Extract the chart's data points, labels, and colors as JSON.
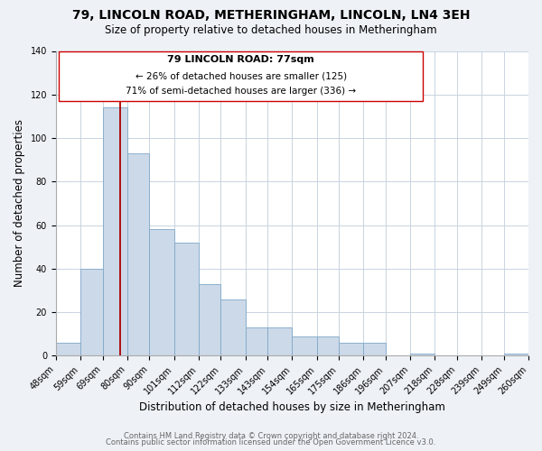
{
  "title": "79, LINCOLN ROAD, METHERINGHAM, LINCOLN, LN4 3EH",
  "subtitle": "Size of property relative to detached houses in Metheringham",
  "xlabel": "Distribution of detached houses by size in Metheringham",
  "ylabel": "Number of detached properties",
  "bar_edges": [
    48,
    59,
    69,
    80,
    90,
    101,
    112,
    122,
    133,
    143,
    154,
    165,
    175,
    186,
    196,
    207,
    218,
    228,
    239,
    249,
    260
  ],
  "bar_heights": [
    6,
    40,
    114,
    93,
    58,
    52,
    33,
    26,
    13,
    13,
    9,
    9,
    6,
    6,
    0,
    1,
    0,
    0,
    0,
    1
  ],
  "bar_color": "#ccd9e8",
  "bar_edge_color": "#7fa8c8",
  "vline_x": 77,
  "vline_color": "#aa0000",
  "ylim": [
    0,
    140
  ],
  "annotation_line1": "79 LINCOLN ROAD: 77sqm",
  "annotation_line2": "← 26% of detached houses are smaller (125)",
  "annotation_line3": "71% of semi-detached houses are larger (336) →",
  "ann_box_color": "#ffffff",
  "ann_border_color": "#cc0000",
  "tick_labels": [
    "48sqm",
    "59sqm",
    "69sqm",
    "80sqm",
    "90sqm",
    "101sqm",
    "112sqm",
    "122sqm",
    "133sqm",
    "143sqm",
    "154sqm",
    "165sqm",
    "175sqm",
    "186sqm",
    "196sqm",
    "207sqm",
    "218sqm",
    "228sqm",
    "239sqm",
    "249sqm",
    "260sqm"
  ],
  "footer_line1": "Contains HM Land Registry data © Crown copyright and database right 2024.",
  "footer_line2": "Contains public sector information licensed under the Open Government Licence v3.0.",
  "background_color": "#eef2f7",
  "plot_bg_color": "#ffffff",
  "grid_color": "#c8d4e0",
  "title_fontsize": 10,
  "subtitle_fontsize": 8.5,
  "axis_label_fontsize": 8.5,
  "tick_fontsize": 7,
  "footer_fontsize": 6,
  "ann_title_fontsize": 8,
  "ann_body_fontsize": 7.5
}
